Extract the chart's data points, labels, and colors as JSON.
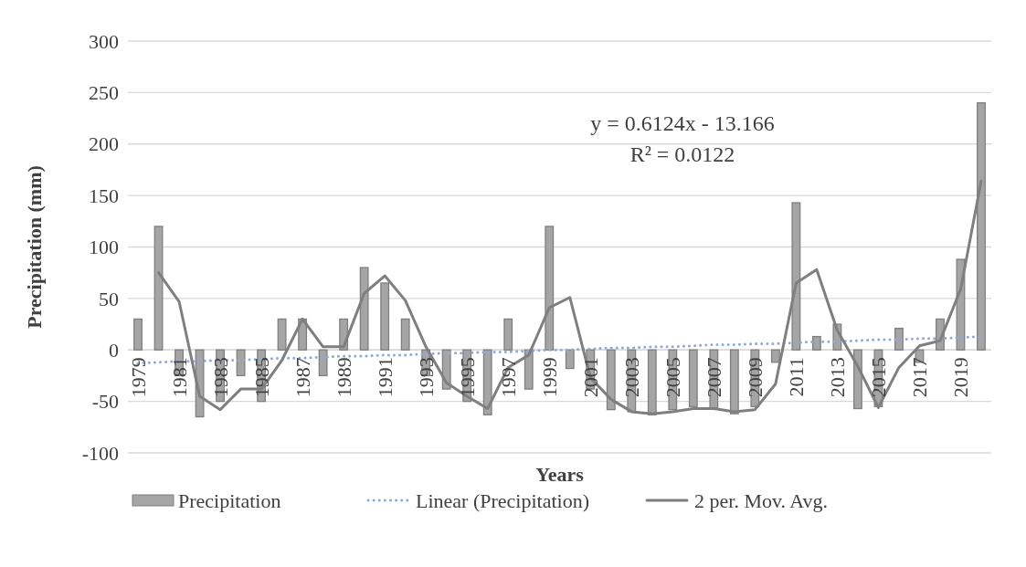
{
  "chart_data": {
    "type": "bar",
    "xlabel": "Years",
    "ylabel": "Precipitation  (mm)",
    "categories": [
      "1979",
      null,
      "1981",
      null,
      "1983",
      null,
      "1985",
      null,
      "1987",
      null,
      "1989",
      null,
      "1991",
      null,
      "1993",
      null,
      "1995",
      null,
      "1997",
      null,
      "1999",
      null,
      "2001",
      null,
      "2003",
      null,
      "2005",
      null,
      "2007",
      null,
      "2009",
      null,
      "2011",
      null,
      "2013",
      null,
      "2015",
      null,
      "2017",
      null,
      "2019",
      null
    ],
    "series": [
      {
        "name": "Precipitation",
        "color": "#a5a5a5",
        "values": [
          30,
          120,
          -25,
          -65,
          -50,
          -25,
          -50,
          30,
          30,
          -25,
          30,
          80,
          65,
          30,
          -25,
          -38,
          -50,
          -63,
          30,
          -38,
          120,
          -18,
          -38,
          -58,
          -60,
          -63,
          -58,
          -55,
          -57,
          -62,
          -55,
          -12,
          143,
          13,
          25,
          -57,
          -55,
          21,
          -12,
          30,
          88,
          240
        ]
      },
      {
        "name": "Linear (Precipitation)",
        "type": "line",
        "line_style": "dotted",
        "color": "#8eaadb",
        "values": [
          -13,
          -12,
          -11,
          -11,
          -10,
          -10,
          -9,
          -8,
          -8,
          -7,
          -6,
          -6,
          -5,
          -5,
          -4,
          -3,
          -3,
          -2,
          -2,
          -1,
          0,
          0,
          1,
          2,
          2,
          3,
          3,
          4,
          5,
          5,
          6,
          6,
          7,
          8,
          8,
          9,
          10,
          10,
          11,
          11,
          12,
          13
        ]
      },
      {
        "name": "2 per. Mov. Avg.",
        "type": "line",
        "line_style": "solid",
        "color": "#7f7f7f",
        "values": [
          null,
          75,
          47,
          -45,
          -58,
          -38,
          -38,
          -10,
          30,
          3,
          3,
          55,
          72,
          48,
          3,
          -32,
          -45,
          -57,
          -17,
          -5,
          41,
          51,
          -27,
          -48,
          -60,
          -62,
          -60,
          -57,
          -57,
          -60,
          -58,
          -33,
          65,
          78,
          19,
          -16,
          -56,
          -17,
          4,
          9,
          59,
          164
        ]
      }
    ],
    "ylim": [
      -100,
      300
    ],
    "yticks": [
      -100,
      -50,
      0,
      50,
      100,
      150,
      200,
      250,
      300
    ],
    "grid": "y",
    "legend": "bottom",
    "marker": "none",
    "annotations": [
      "y = 0.6124x - 13.166",
      "R² = 0.0122"
    ]
  }
}
